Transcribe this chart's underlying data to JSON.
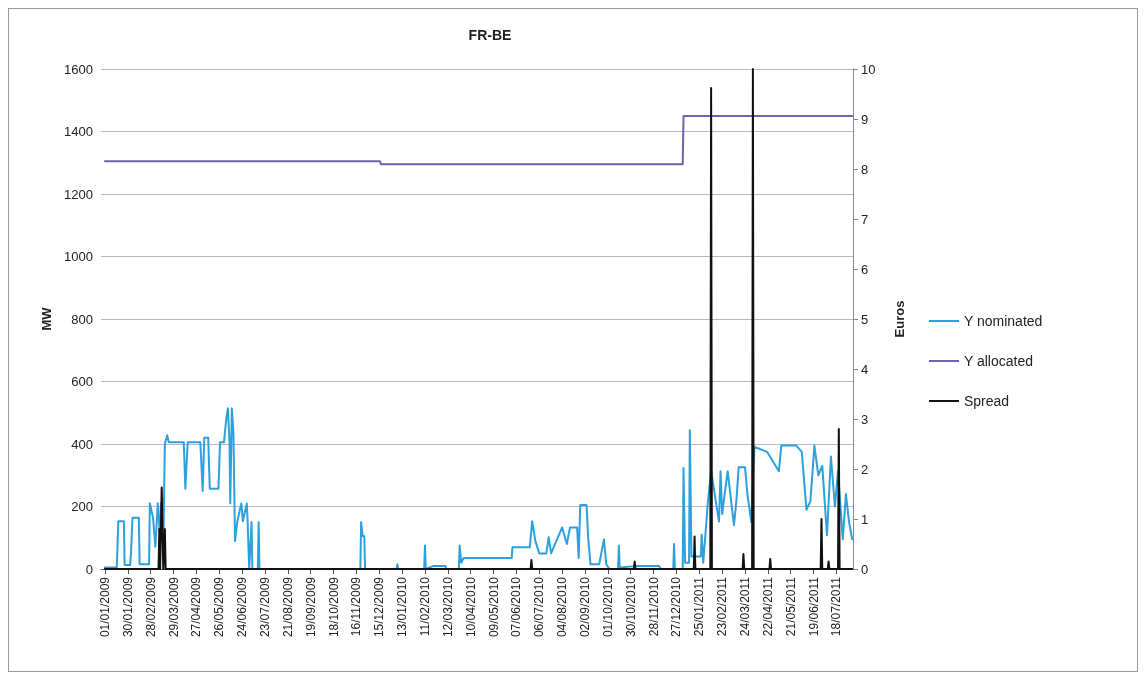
{
  "chart_data": {
    "type": "line",
    "title": "FR-BE",
    "ylabel": "MW",
    "y2label": "Euros",
    "xlim": [
      "2008-12-27",
      "2011-08-08"
    ],
    "xticks": [
      {
        "value": "2009-01-01",
        "label": "01/01/2009"
      },
      {
        "value": "2009-01-30",
        "label": "30/01/2009"
      },
      {
        "value": "2009-02-28",
        "label": "28/02/2009"
      },
      {
        "value": "2009-03-29",
        "label": "29/03/2009"
      },
      {
        "value": "2009-04-27",
        "label": "27/04/2009"
      },
      {
        "value": "2009-05-26",
        "label": "26/05/2009"
      },
      {
        "value": "2009-06-24",
        "label": "24/06/2009"
      },
      {
        "value": "2009-07-23",
        "label": "23/07/2009"
      },
      {
        "value": "2009-08-21",
        "label": "21/08/2009"
      },
      {
        "value": "2009-09-19",
        "label": "19/09/2009"
      },
      {
        "value": "2009-10-18",
        "label": "18/10/2009"
      },
      {
        "value": "2009-11-16",
        "label": "16/11/2009"
      },
      {
        "value": "2009-12-15",
        "label": "15/12/2009"
      },
      {
        "value": "2010-01-13",
        "label": "13/01/2010"
      },
      {
        "value": "2010-02-11",
        "label": "11/02/2010"
      },
      {
        "value": "2010-03-12",
        "label": "12/03/2010"
      },
      {
        "value": "2010-04-10",
        "label": "10/04/2010"
      },
      {
        "value": "2010-05-09",
        "label": "09/05/2010"
      },
      {
        "value": "2010-06-07",
        "label": "07/06/2010"
      },
      {
        "value": "2010-07-06",
        "label": "06/07/2010"
      },
      {
        "value": "2010-08-04",
        "label": "04/08/2010"
      },
      {
        "value": "2010-09-02",
        "label": "02/09/2010"
      },
      {
        "value": "2010-10-01",
        "label": "01/10/2010"
      },
      {
        "value": "2010-10-30",
        "label": "30/10/2010"
      },
      {
        "value": "2010-11-28",
        "label": "28/11/2010"
      },
      {
        "value": "2010-12-27",
        "label": "27/12/2010"
      },
      {
        "value": "2011-01-25",
        "label": "25/01/2011"
      },
      {
        "value": "2011-02-23",
        "label": "23/02/2011"
      },
      {
        "value": "2011-03-24",
        "label": "24/03/2011"
      },
      {
        "value": "2011-04-22",
        "label": "22/04/2011"
      },
      {
        "value": "2011-05-21",
        "label": "21/05/2011"
      },
      {
        "value": "2011-06-19",
        "label": "19/06/2011"
      },
      {
        "value": "2011-07-18",
        "label": "18/07/2011"
      }
    ],
    "ylim": [
      0,
      1600
    ],
    "yticks": [
      0,
      200,
      400,
      600,
      800,
      1000,
      1200,
      1400,
      1600
    ],
    "y2lim": [
      0,
      10
    ],
    "y2ticks": [
      0,
      1,
      2,
      3,
      4,
      5,
      6,
      7,
      8,
      9,
      10
    ],
    "grid": "y",
    "legend": "right",
    "marker": "none",
    "line_style": "solid",
    "series": [
      {
        "name": "Y nominated",
        "color": "#2ea0dc",
        "x": [
          "2009-01-01",
          "2009-01-16",
          "2009-01-18",
          "2009-01-25",
          "2009-01-26",
          "2009-02-02",
          "2009-02-03",
          "2009-02-05",
          "2009-02-13",
          "2009-02-14",
          "2009-02-26",
          "2009-02-27",
          "2009-03-03",
          "2009-03-06",
          "2009-03-09",
          "2009-03-12",
          "2009-03-13",
          "2009-03-16",
          "2009-03-18",
          "2009-03-21",
          "2009-03-23",
          "2009-04-11",
          "2009-04-13",
          "2009-04-16",
          "2009-05-02",
          "2009-05-05",
          "2009-05-07",
          "2009-05-12",
          "2009-05-14",
          "2009-05-25",
          "2009-05-27",
          "2009-06-01",
          "2009-06-04",
          "2009-06-06",
          "2009-06-08",
          "2009-06-09",
          "2009-06-11",
          "2009-06-13",
          "2009-06-15",
          "2009-06-18",
          "2009-06-23",
          "2009-06-25",
          "2009-06-30",
          "2009-07-01",
          "2009-07-03",
          "2009-07-06",
          "2009-07-07",
          "2009-07-14",
          "2009-07-15",
          "2009-07-16",
          "2009-11-21",
          "2009-11-22",
          "2009-11-24",
          "2009-11-26",
          "2009-11-27",
          "2010-01-06",
          "2010-01-07",
          "2010-01-08",
          "2010-02-10",
          "2010-02-11",
          "2010-02-12",
          "2010-02-22",
          "2010-03-09",
          "2010-03-10",
          "2010-03-26",
          "2010-03-27",
          "2010-03-29",
          "2010-04-01",
          "2010-06-01",
          "2010-06-02",
          "2010-06-24",
          "2010-06-27",
          "2010-07-01",
          "2010-07-06",
          "2010-07-15",
          "2010-07-18",
          "2010-07-21",
          "2010-08-04",
          "2010-08-10",
          "2010-08-14",
          "2010-08-23",
          "2010-08-25",
          "2010-08-27",
          "2010-09-04",
          "2010-09-06",
          "2010-09-09",
          "2010-09-20",
          "2010-09-26",
          "2010-09-29",
          "2010-10-03",
          "2010-10-14",
          "2010-10-15",
          "2010-10-16",
          "2010-11-08",
          "2010-12-05",
          "2010-12-07",
          "2010-12-23",
          "2010-12-24",
          "2010-12-25",
          "2011-01-04",
          "2011-01-05",
          "2011-01-07",
          "2011-01-12",
          "2011-01-13",
          "2011-01-15",
          "2011-01-27",
          "2011-01-28",
          "2011-01-30",
          "2011-02-05",
          "2011-02-09",
          "2011-02-19",
          "2011-02-21",
          "2011-02-23",
          "2011-03-02",
          "2011-03-10",
          "2011-03-13",
          "2011-03-16",
          "2011-03-24",
          "2011-03-27",
          "2011-04-01",
          "2011-04-05",
          "2011-04-21",
          "2011-05-06",
          "2011-05-09",
          "2011-05-28",
          "2011-06-04",
          "2011-06-10",
          "2011-06-15",
          "2011-06-20",
          "2011-06-25",
          "2011-06-30",
          "2011-07-06",
          "2011-07-11",
          "2011-07-16",
          "2011-07-20",
          "2011-07-26",
          "2011-07-30",
          "2011-08-03",
          "2011-08-07"
        ],
        "values": [
          5,
          5,
          153,
          153,
          13,
          13,
          50,
          164,
          164,
          15,
          15,
          210,
          164,
          71,
          210,
          100,
          210,
          60,
          400,
          428,
          406,
          406,
          257,
          406,
          406,
          250,
          420,
          420,
          257,
          257,
          406,
          406,
          483,
          514,
          406,
          210,
          514,
          436,
          90,
          153,
          210,
          153,
          210,
          153,
          0,
          150,
          0,
          0,
          150,
          0,
          0,
          150,
          105,
          105,
          0,
          0,
          15,
          0,
          0,
          75,
          0,
          10,
          10,
          0,
          0,
          75,
          20,
          35,
          35,
          70,
          70,
          153,
          90,
          50,
          50,
          102,
          50,
          133,
          80,
          133,
          133,
          35,
          205,
          205,
          100,
          15,
          15,
          95,
          15,
          0,
          0,
          75,
          5,
          10,
          10,
          0,
          0,
          80,
          0,
          0,
          323,
          20,
          20,
          444,
          40,
          40,
          110,
          20,
          217,
          313,
          152,
          313,
          176,
          313,
          140,
          217,
          326,
          326,
          240,
          150,
          391,
          375,
          313,
          395,
          395,
          375,
          190,
          217,
          395,
          300,
          330,
          108,
          360,
          200,
          313,
          95,
          240,
          150,
          95
        ]
      },
      {
        "name": "Y allocated",
        "color": "#6f63ad",
        "x": [
          "2009-01-01",
          "2009-12-16",
          "2009-12-17",
          "2011-01-04",
          "2011-01-05",
          "2011-08-07"
        ],
        "values": [
          1305,
          1305,
          1295,
          1295,
          1450,
          1450
        ]
      },
      {
        "name": "Spread",
        "color": "#111111",
        "axis": "y2",
        "x": [
          "2009-01-01",
          "2009-03-10",
          "2009-03-11",
          "2009-03-12",
          "2009-03-14",
          "2009-03-16",
          "2009-03-18",
          "2009-03-19",
          "2010-06-25",
          "2010-06-26",
          "2010-06-27",
          "2010-11-03",
          "2010-11-04",
          "2010-11-05",
          "2011-01-18",
          "2011-01-19",
          "2011-01-20",
          "2011-02-08",
          "2011-02-09",
          "2011-02-10",
          "2011-03-21",
          "2011-03-22",
          "2011-03-23",
          "2011-04-02",
          "2011-04-03",
          "2011-04-04",
          "2011-04-24",
          "2011-04-25",
          "2011-04-26",
          "2011-06-28",
          "2011-06-29",
          "2011-06-30",
          "2011-07-07",
          "2011-07-08",
          "2011-07-09",
          "2011-07-20",
          "2011-07-21",
          "2011-07-22",
          "2011-08-07"
        ],
        "values": [
          0,
          0,
          0.8,
          0,
          1.63,
          0,
          0.8,
          0,
          0,
          0.18,
          0,
          0,
          0.15,
          0,
          0,
          0.65,
          0,
          0,
          9.62,
          0,
          0,
          0.3,
          0,
          0,
          10,
          0,
          0,
          0.2,
          0,
          0,
          1,
          0,
          0,
          0.15,
          0,
          0,
          2.8,
          0,
          0
        ]
      }
    ]
  }
}
